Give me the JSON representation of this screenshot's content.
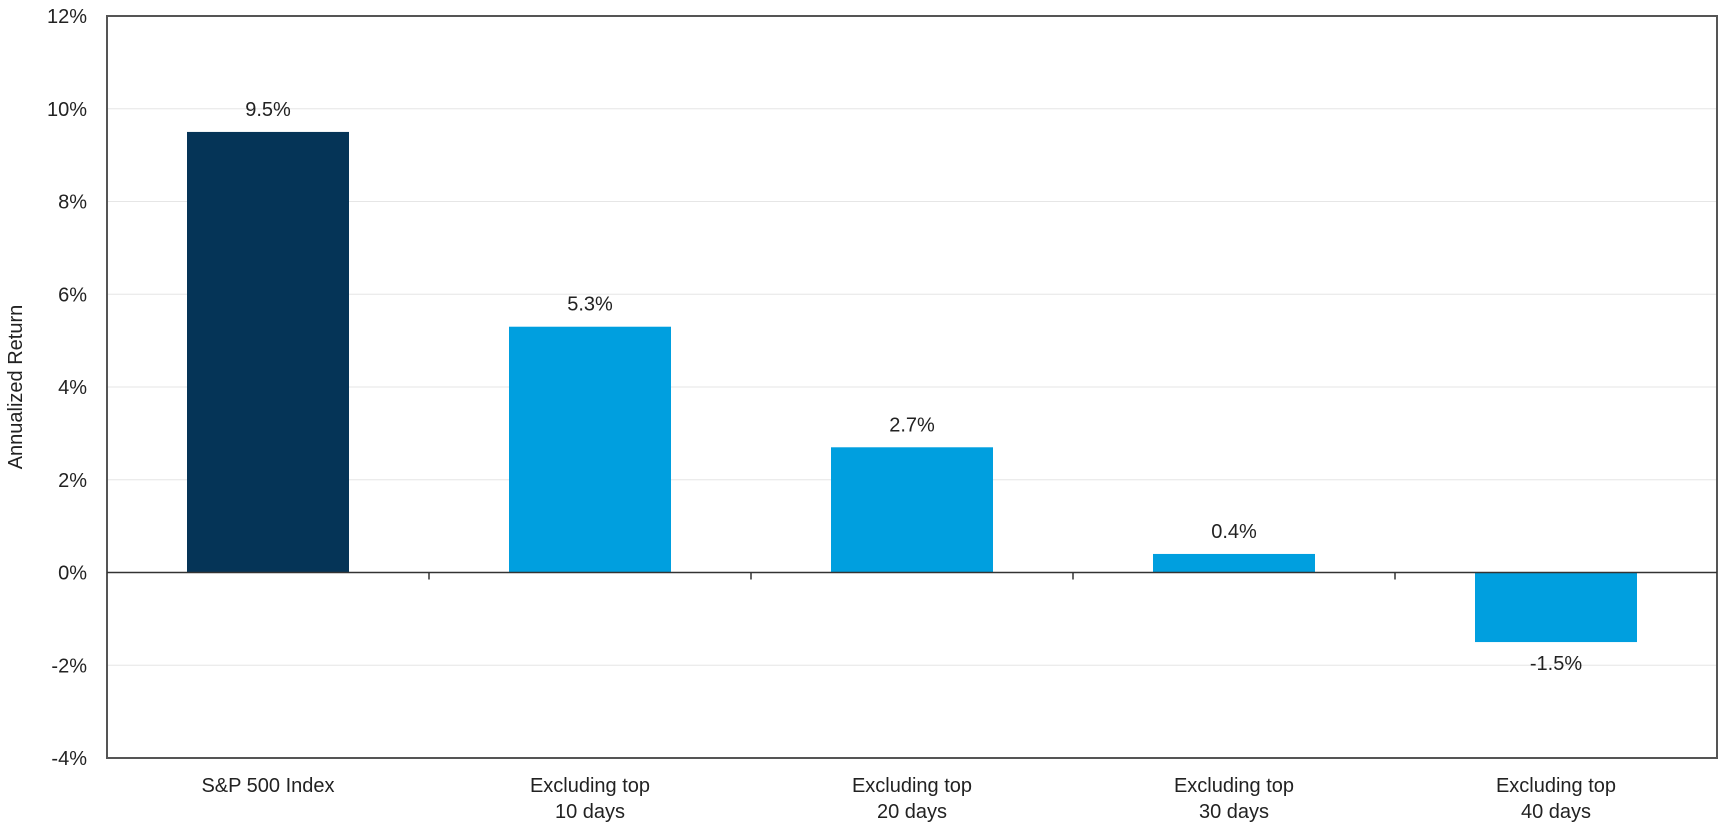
{
  "chart_data": {
    "type": "bar",
    "ylabel": "Annualized Return",
    "xlabel": "",
    "ylim": [
      -4,
      12
    ],
    "y_ticks": [
      12,
      10,
      8,
      6,
      4,
      2,
      0,
      -2,
      -4
    ],
    "y_tick_labels": [
      "12%",
      "10%",
      "8%",
      "6%",
      "4%",
      "2%",
      "0%",
      "-2%",
      "-4%"
    ],
    "grid": true,
    "categories": [
      [
        "S&P 500 Index"
      ],
      [
        "Excluding top",
        "10 days"
      ],
      [
        "Excluding top",
        "20 days"
      ],
      [
        "Excluding top",
        "30 days"
      ],
      [
        "Excluding top",
        "40 days"
      ]
    ],
    "values": [
      9.5,
      5.3,
      2.7,
      0.4,
      -1.5
    ],
    "value_labels": [
      "9.5%",
      "5.3%",
      "2.7%",
      "0.4%",
      "-1.5%"
    ],
    "colors": [
      "#053457",
      "#009fdf",
      "#009fdf",
      "#009fdf",
      "#009fdf"
    ],
    "grid_color": "#e6e6e6",
    "axis_color": "#555555"
  }
}
